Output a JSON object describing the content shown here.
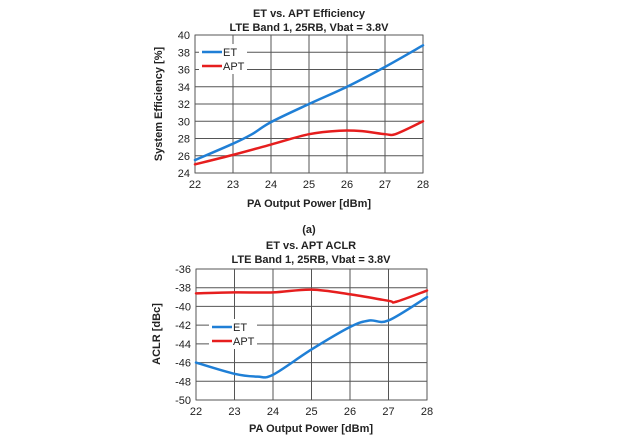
{
  "caption": "(a)",
  "chart_data": [
    {
      "type": "line",
      "title": "ET vs. APT Efficiency",
      "subtitle": "LTE Band 1, 25RB, Vbat = 3.8V",
      "xlabel": "PA Output Power [dBm]",
      "ylabel": "System Efficiency [%]",
      "xlim": [
        22,
        28
      ],
      "ylim": [
        24,
        40
      ],
      "xticks": [
        22,
        23,
        24,
        25,
        26,
        27,
        28
      ],
      "yticks": [
        24,
        26,
        28,
        30,
        32,
        34,
        36,
        38,
        40
      ],
      "grid": true,
      "legend": "top-left",
      "series": [
        {
          "name": "ET",
          "color": "#1f7fd6",
          "x": [
            22,
            23,
            23.5,
            24,
            25,
            26,
            27,
            28
          ],
          "y": [
            25.5,
            27.4,
            28.5,
            29.9,
            32.0,
            34.0,
            36.3,
            38.8
          ]
        },
        {
          "name": "APT",
          "color": "#e61e1e",
          "x": [
            22,
            23,
            24,
            25,
            25.8,
            26.4,
            27,
            27.3,
            28
          ],
          "y": [
            25.0,
            26.1,
            27.3,
            28.5,
            28.9,
            28.85,
            28.5,
            28.55,
            30.0
          ]
        }
      ]
    },
    {
      "type": "line",
      "title": "ET vs. APT ACLR",
      "subtitle": "LTE Band 1, 25RB, Vbat = 3.8V",
      "xlabel": "PA Output Power [dBm]",
      "ylabel": "ACLR [dBc]",
      "xlim": [
        22,
        28
      ],
      "ylim": [
        -50,
        -36
      ],
      "xticks": [
        22,
        23,
        24,
        25,
        26,
        27,
        28
      ],
      "yticks": [
        -50,
        -48,
        -46,
        -44,
        -42,
        -40,
        -38,
        -36
      ],
      "grid": true,
      "legend": "center-left",
      "series": [
        {
          "name": "ET",
          "color": "#1f7fd6",
          "x": [
            22,
            23,
            23.6,
            24,
            25,
            26,
            26.5,
            27,
            28
          ],
          "y": [
            -46.0,
            -47.2,
            -47.5,
            -47.3,
            -44.6,
            -42.2,
            -41.5,
            -41.5,
            -39.0
          ]
        },
        {
          "name": "APT",
          "color": "#e61e1e",
          "x": [
            22,
            23,
            24,
            25,
            26,
            27,
            27.2,
            28
          ],
          "y": [
            -38.6,
            -38.5,
            -38.5,
            -38.2,
            -38.7,
            -39.4,
            -39.5,
            -38.3
          ]
        }
      ]
    }
  ]
}
